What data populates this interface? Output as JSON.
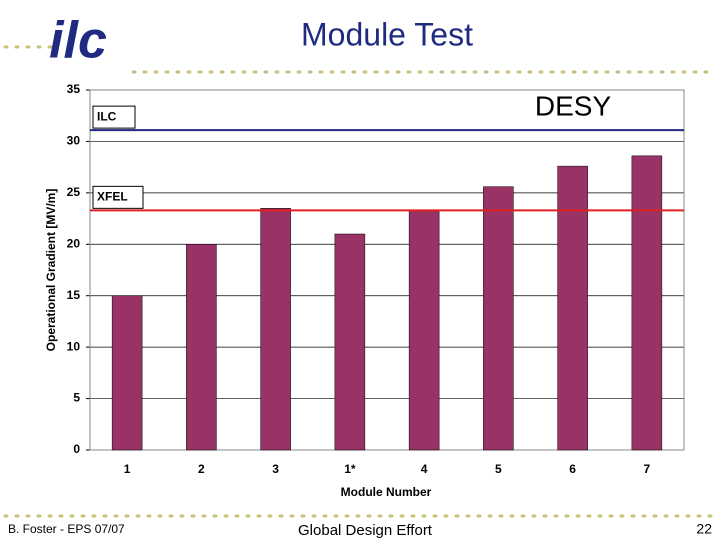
{
  "slide": {
    "logo": "ilc",
    "title": "Module Test",
    "lab": "DESY",
    "footer_left": "B. Foster - EPS 07/07",
    "footer_center": "Global Design Effort",
    "page_number": "22"
  },
  "chart_data": {
    "type": "bar",
    "categories": [
      "1",
      "2",
      "3",
      "1*",
      "4",
      "5",
      "6",
      "7"
    ],
    "values": [
      15,
      20,
      23.5,
      21,
      23.3,
      25.6,
      27.6,
      28.6
    ],
    "color": "#993366",
    "x_label": "Module Number",
    "y_label": "Operational Gradient [MV/m]",
    "ylim": [
      0,
      35
    ],
    "yticks": [
      0,
      5,
      10,
      15,
      20,
      25,
      30,
      35
    ],
    "grid": true,
    "reference_lines": [
      {
        "label": "ILC",
        "value": 31.1,
        "color": "#1f2a80"
      },
      {
        "label": "XFEL",
        "value": 23.3,
        "color": "#e02020"
      }
    ]
  }
}
